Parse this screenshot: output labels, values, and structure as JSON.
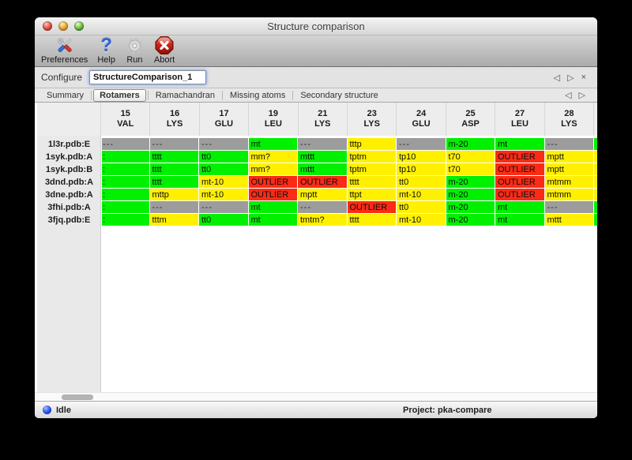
{
  "window_title": "Structure comparison",
  "toolbar": {
    "items": [
      {
        "id": "preferences",
        "label": "Preferences"
      },
      {
        "id": "help",
        "label": "Help"
      },
      {
        "id": "run",
        "label": "Run"
      },
      {
        "id": "abort",
        "label": "Abort"
      }
    ]
  },
  "configure": {
    "label": "Configure",
    "value": "StructureComparison_1"
  },
  "nav": {
    "back": "◁",
    "forward": "▷",
    "close": "×"
  },
  "tabs": {
    "items": [
      "Summary",
      "Rotamers",
      "Ramachandran",
      "Missing atoms",
      "Secondary structure"
    ],
    "selected": "Rotamers"
  },
  "table": {
    "columns": [
      {
        "num": "15",
        "res": "VAL"
      },
      {
        "num": "16",
        "res": "LYS"
      },
      {
        "num": "17",
        "res": "GLU"
      },
      {
        "num": "19",
        "res": "LEU"
      },
      {
        "num": "21",
        "res": "LYS"
      },
      {
        "num": "23",
        "res": "LYS"
      },
      {
        "num": "24",
        "res": "GLU"
      },
      {
        "num": "25",
        "res": "ASP"
      },
      {
        "num": "27",
        "res": "LEU"
      },
      {
        "num": "28",
        "res": "LYS"
      }
    ],
    "rows": [
      {
        "label": "1l3r.pdb:E",
        "partial": "green",
        "cells": [
          [
            "---",
            "gray"
          ],
          [
            "---",
            "gray"
          ],
          [
            "---",
            "gray"
          ],
          [
            "mt",
            "green"
          ],
          [
            "---",
            "gray"
          ],
          [
            "tttp",
            "yellow"
          ],
          [
            "---",
            "gray"
          ],
          [
            "m-20",
            "green"
          ],
          [
            "mt",
            "green"
          ],
          [
            "---",
            "gray"
          ]
        ]
      },
      {
        "label": "1syk.pdb:A",
        "partial": "yellow",
        "cells": [
          [
            ":",
            "green"
          ],
          [
            "tttt",
            "green"
          ],
          [
            "tt0",
            "green"
          ],
          [
            "mm?",
            "yellow"
          ],
          [
            "mttt",
            "green"
          ],
          [
            "tptm",
            "yellow"
          ],
          [
            "tp10",
            "yellow"
          ],
          [
            "t70",
            "yellow"
          ],
          [
            "OUTLIER",
            "red"
          ],
          [
            "mptt",
            "yellow"
          ]
        ]
      },
      {
        "label": "1syk.pdb:B",
        "partial": "yellow",
        "cells": [
          [
            ":",
            "green"
          ],
          [
            "tttt",
            "green"
          ],
          [
            "tt0",
            "green"
          ],
          [
            "mm?",
            "yellow"
          ],
          [
            "mttt",
            "green"
          ],
          [
            "tptm",
            "yellow"
          ],
          [
            "tp10",
            "yellow"
          ],
          [
            "t70",
            "yellow"
          ],
          [
            "OUTLIER",
            "red"
          ],
          [
            "mptt",
            "yellow"
          ]
        ]
      },
      {
        "label": "3dnd.pdb:A",
        "partial": "yellow",
        "cells": [
          [
            ":",
            "green"
          ],
          [
            "tttt",
            "green"
          ],
          [
            "mt-10",
            "yellow"
          ],
          [
            "OUTLIER",
            "red"
          ],
          [
            "OUTLIER",
            "red"
          ],
          [
            "tttt",
            "yellow"
          ],
          [
            "tt0",
            "yellow"
          ],
          [
            "m-20",
            "green"
          ],
          [
            "OUTLIER",
            "red"
          ],
          [
            "mtmm",
            "yellow"
          ]
        ]
      },
      {
        "label": "3dne.pdb:A",
        "partial": "yellow",
        "cells": [
          [
            ":",
            "green"
          ],
          [
            "mttp",
            "yellow"
          ],
          [
            "mt-10",
            "yellow"
          ],
          [
            "OUTLIER",
            "red"
          ],
          [
            "mptt",
            "yellow"
          ],
          [
            "ttpt",
            "yellow"
          ],
          [
            "mt-10",
            "yellow"
          ],
          [
            "m-20",
            "green"
          ],
          [
            "OUTLIER",
            "red"
          ],
          [
            "mtmm",
            "yellow"
          ]
        ]
      },
      {
        "label": "3fhi.pdb:A",
        "partial": "green",
        "cells": [
          [
            ":",
            "green"
          ],
          [
            "---",
            "gray"
          ],
          [
            "---",
            "gray"
          ],
          [
            "mt",
            "green"
          ],
          [
            "---",
            "gray"
          ],
          [
            "OUTLIER",
            "red"
          ],
          [
            "tt0",
            "yellow"
          ],
          [
            "m-20",
            "green"
          ],
          [
            "mt",
            "green"
          ],
          [
            "---",
            "gray"
          ]
        ]
      },
      {
        "label": "3fjq.pdb:E",
        "partial": "green",
        "cells": [
          [
            ":",
            "green"
          ],
          [
            "tttm",
            "yellow"
          ],
          [
            "tt0",
            "green"
          ],
          [
            "mt",
            "green"
          ],
          [
            "tmtm?",
            "yellow"
          ],
          [
            "tttt",
            "yellow"
          ],
          [
            "mt-10",
            "yellow"
          ],
          [
            "m-20",
            "green"
          ],
          [
            "mt",
            "green"
          ],
          [
            "mttt",
            "yellow"
          ]
        ]
      }
    ]
  },
  "statusbar": {
    "status": "Idle",
    "project": "Project: pka-compare"
  },
  "colors": {
    "green": "#00f000",
    "yellow": "#fff000",
    "red": "#fb2b16",
    "gray": "#9c9c9c"
  }
}
